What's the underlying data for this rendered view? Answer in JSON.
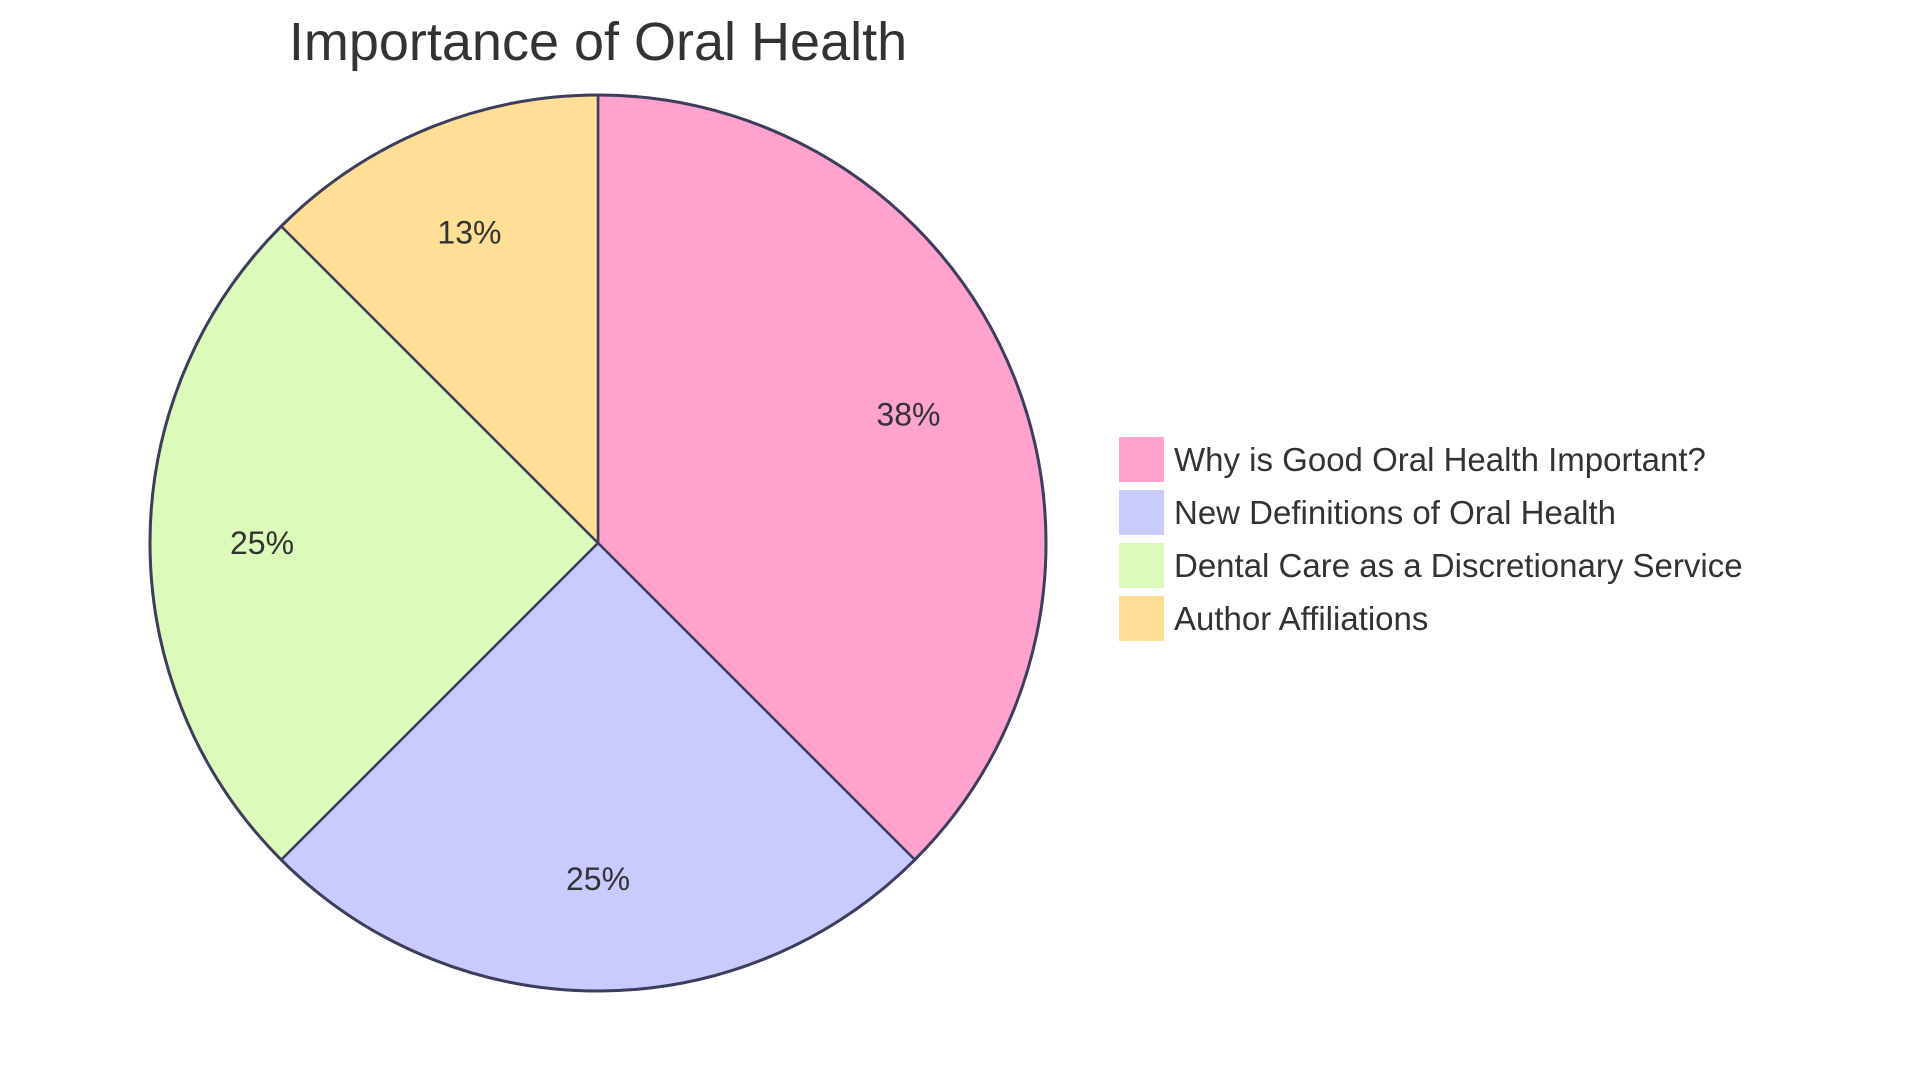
{
  "chart_data": {
    "type": "pie",
    "title": "Importance of Oral Health",
    "slices": [
      {
        "label": "Why is Good Oral Health Important?",
        "value": 3,
        "percent_label": "38%",
        "color": "#FFA3CE"
      },
      {
        "label": "New Definitions of Oral Health",
        "value": 2,
        "percent_label": "25%",
        "color": "#C9CBFF"
      },
      {
        "label": "Dental Care as a Discretionary Service",
        "value": 2,
        "percent_label": "25%",
        "color": "#DCFABA"
      },
      {
        "label": "Author Affiliations",
        "value": 1,
        "percent_label": "13%",
        "color": "#FFDE96"
      }
    ],
    "stroke_color": "#3D3D5C",
    "start_angle": "12 o'clock",
    "direction": "clockwise",
    "legend": {
      "placement": "right"
    }
  }
}
